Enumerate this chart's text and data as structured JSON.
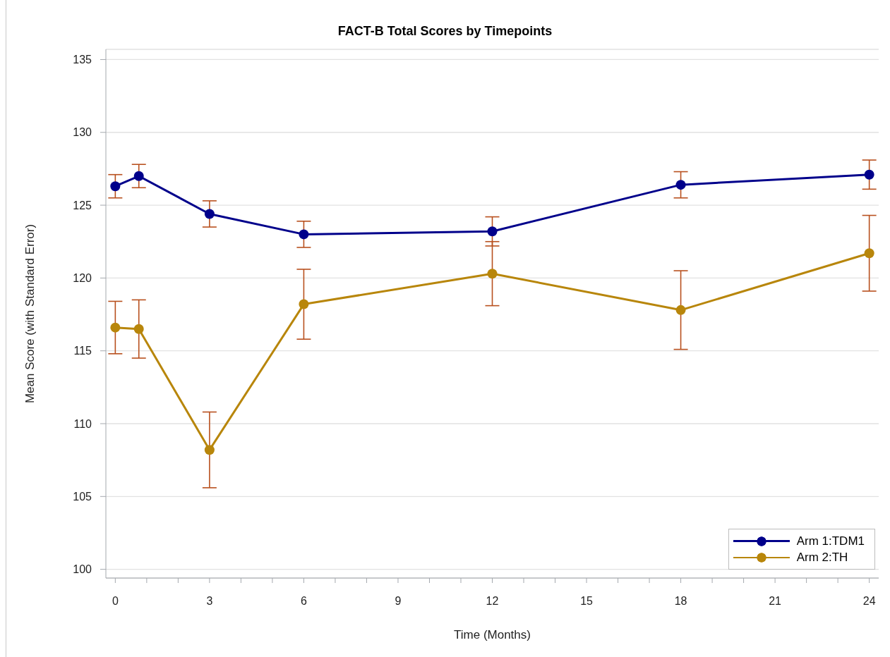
{
  "chart_data": {
    "type": "line",
    "title": "FACT-B Total Scores by Timepoints",
    "xlabel": "Time (Months)",
    "ylabel": "Mean Score (with Standard Error)",
    "x": [
      0,
      0.75,
      3,
      6,
      12,
      18,
      24
    ],
    "series": [
      {
        "name": "Arm 1:TDM1",
        "color": "#00008b",
        "values": [
          126.3,
          127.0,
          124.4,
          123.0,
          123.2,
          126.4,
          127.1
        ],
        "errors": [
          0.8,
          0.8,
          0.9,
          0.9,
          1.0,
          0.9,
          1.0
        ]
      },
      {
        "name": "Arm 2:TH",
        "color": "#b8860b",
        "values": [
          116.6,
          116.5,
          108.2,
          118.2,
          120.3,
          117.8,
          121.7
        ],
        "errors": [
          1.8,
          2.0,
          2.6,
          2.4,
          2.2,
          2.7,
          2.6
        ]
      }
    ],
    "xlim": [
      -0.3,
      24.3
    ],
    "xticks": [
      0,
      {
        "value": 1,
        "label": null
      },
      {
        "value": 2,
        "label": null
      },
      3,
      {
        "value": 4,
        "label": null
      },
      {
        "value": 5,
        "label": null
      },
      6,
      {
        "value": 7,
        "label": null
      },
      {
        "value": 8,
        "label": null
      },
      9,
      {
        "value": 10,
        "label": null
      },
      {
        "value": 11,
        "label": null
      },
      12,
      {
        "value": 13,
        "label": null
      },
      {
        "value": 14,
        "label": null
      },
      15,
      {
        "value": 16,
        "label": null
      },
      {
        "value": 17,
        "label": null
      },
      18,
      {
        "value": 19,
        "label": null
      },
      {
        "value": 20,
        "label": null
      },
      21,
      {
        "value": 22,
        "label": null
      },
      {
        "value": 23,
        "label": null
      },
      24
    ],
    "ylim": [
      99.4,
      135.7
    ],
    "yticks": [
      100,
      105,
      110,
      115,
      120,
      125,
      130,
      135
    ],
    "grid": "y",
    "legend": "bottom right",
    "marker": "circle",
    "line_style": "solid"
  }
}
